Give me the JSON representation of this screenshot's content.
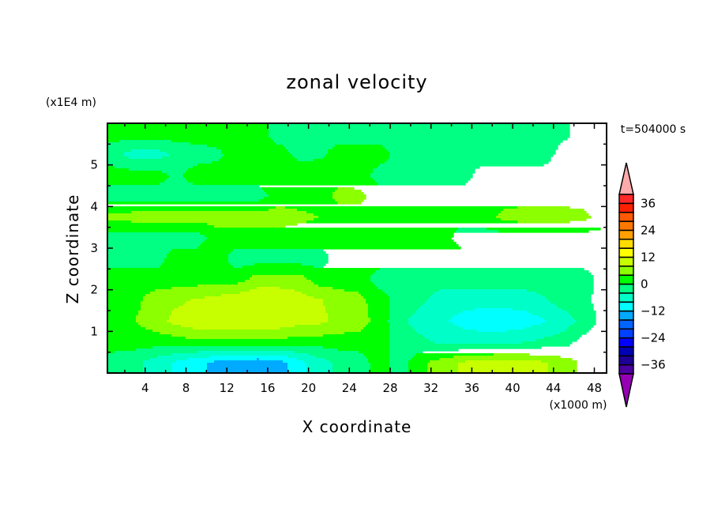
{
  "chart_data": {
    "type": "heatmap",
    "style": "filled-contour",
    "title": "zonal velocity",
    "xlabel": "X coordinate",
    "ylabel": "Z coordinate",
    "x_scale_label": "(x1000 m)",
    "y_scale_label": "(x1E4 m)",
    "time_label": "t=504000 s",
    "xlim": [
      0.3,
      49.2
    ],
    "ylim": [
      0,
      6
    ],
    "xticks": [
      4,
      8,
      12,
      16,
      20,
      24,
      28,
      32,
      36,
      40,
      44,
      48
    ],
    "yticks": [
      1,
      2,
      3,
      4,
      5
    ],
    "x": [
      1,
      3,
      5,
      7,
      9,
      11,
      13,
      15,
      17,
      19,
      21,
      23,
      25,
      27,
      29,
      31,
      33,
      35,
      37,
      39,
      41,
      43,
      45,
      47,
      49
    ],
    "z": [
      5.75,
      5.25,
      4.75,
      4.25,
      3.75,
      3.25,
      2.75,
      2.25,
      1.75,
      1.25,
      0.75,
      0.25
    ],
    "values": [
      [
        2,
        2,
        2,
        2,
        2,
        2,
        2,
        2,
        -2,
        -2,
        -2,
        -2,
        -2,
        -2,
        -2,
        -2,
        -2,
        -2,
        -2,
        -2,
        -2,
        -2,
        -1,
        2,
        2
      ],
      [
        -3,
        -6,
        -6,
        -3,
        -2,
        -1,
        2,
        2,
        2,
        -1,
        -1,
        2,
        2,
        2,
        -2,
        -2,
        -2,
        -2,
        -2,
        -2,
        -2,
        -2,
        2,
        2,
        2
      ],
      [
        2,
        2,
        2,
        -1,
        2,
        2,
        2,
        2,
        2,
        2,
        3,
        3,
        2,
        -2,
        -2,
        -2,
        -2,
        -2,
        2,
        2,
        2,
        2,
        2,
        2,
        2
      ],
      [
        -2,
        -2,
        -2,
        -2,
        -2,
        -2,
        -2,
        -2,
        2,
        2,
        2,
        5,
        5,
        2,
        2,
        2,
        2,
        2,
        2,
        2,
        2,
        2,
        2,
        2,
        2
      ],
      [
        5,
        6,
        6,
        6,
        6,
        6,
        6,
        6,
        6,
        5,
        4,
        2,
        2,
        2,
        2,
        2,
        2,
        2,
        2,
        5,
        6,
        6,
        6,
        5,
        2
      ],
      [
        -2,
        -2,
        -2,
        -2,
        -2,
        2,
        2,
        2,
        2,
        2,
        2,
        2,
        2,
        2,
        2,
        2,
        2,
        -2,
        -2,
        -2,
        -2,
        -2,
        -2,
        -2,
        -2
      ],
      [
        -2,
        -2,
        -2,
        2,
        2,
        2,
        -2,
        -2,
        -2,
        -2,
        -2,
        2,
        2,
        2,
        2,
        2,
        2,
        2,
        2,
        2,
        2,
        2,
        2,
        2,
        2
      ],
      [
        2,
        2,
        2,
        2,
        2,
        2,
        2,
        6,
        6,
        6,
        2,
        2,
        2,
        -2,
        -2,
        -2,
        -2,
        -2,
        -2,
        -2,
        -2,
        -2,
        -2,
        -2,
        2
      ],
      [
        2,
        3,
        6,
        7,
        8.5,
        9.5,
        11,
        11,
        11,
        9.5,
        8.5,
        6,
        5,
        2,
        -2,
        -3,
        -6,
        -6,
        -6,
        -6,
        -6,
        -4.5,
        -2,
        -1,
        2
      ],
      [
        2,
        4,
        6,
        9.5,
        11,
        11,
        11,
        11,
        11,
        9.5,
        9,
        7,
        6,
        2,
        -3,
        -6,
        -7,
        -9.5,
        -11,
        -11,
        -10,
        -8.5,
        -6,
        -3,
        2
      ],
      [
        2,
        2,
        2,
        2,
        3,
        3,
        3,
        3,
        3,
        2,
        2,
        2,
        2,
        2,
        -2,
        -3,
        -5,
        -5,
        -5,
        -5,
        -4.5,
        -3,
        -2,
        2,
        2
      ],
      [
        -2,
        -3,
        -6,
        -8.5,
        -11,
        -13,
        -14,
        -15,
        -14,
        -9.5,
        -6,
        -3,
        -2,
        2,
        -2,
        3,
        6,
        8.5,
        9.5,
        10,
        9.5,
        8.5,
        6,
        3,
        2
      ]
    ],
    "levels": [
      -40,
      -36,
      -32,
      -28,
      -24,
      -20,
      -16,
      -12,
      -8,
      -4,
      0,
      4,
      8,
      12,
      16,
      20,
      24,
      28,
      32,
      36,
      40
    ],
    "colors_bottom_to_top": [
      "#4b00a0",
      "#1e0096",
      "#0000b4",
      "#0000ff",
      "#0040ff",
      "#0064ff",
      "#00aaff",
      "#00ffff",
      "#00ffc8",
      "#00ff82",
      "#00ff00",
      "#8cff00",
      "#c8ff00",
      "#ffff00",
      "#ffdc00",
      "#ffa000",
      "#ff7800",
      "#ff5a00",
      "#ff2000",
      "#ff2828"
    ],
    "under_color": "#9600b4",
    "over_color": "#ffaaaa",
    "colorbar_labels": [
      -36,
      -24,
      -12,
      0,
      12,
      24,
      36
    ],
    "legend_position": "right"
  }
}
